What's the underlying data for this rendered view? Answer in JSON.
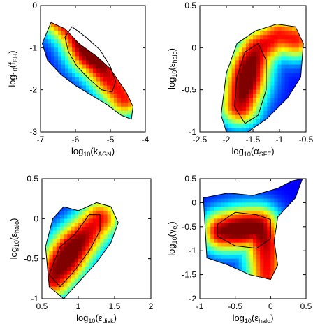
{
  "chart_data": [
    {
      "type": "heatmap",
      "xlabel": "log10(kAGN)",
      "xlabel_parts": {
        "pre": "log",
        "base": "10",
        "mid": "(k",
        "sub": "AGN",
        "post": ")"
      },
      "ylabel": "log10(fBH)",
      "ylabel_parts": {
        "pre": "log",
        "base": "10",
        "mid": "(f",
        "sub": "BH",
        "post": ")"
      },
      "xlim": [
        -7,
        -4
      ],
      "ylim": [
        -3,
        0
      ],
      "xticks": [
        "-7",
        "-6",
        "-5",
        "-4"
      ],
      "yticks": [
        "-3",
        "-2",
        "-1",
        "0"
      ],
      "xtick_values": [
        -7,
        -6,
        -5,
        -4
      ],
      "ytick_values": [
        -3,
        -2,
        -1,
        0
      ],
      "colormap": "jet",
      "peak": {
        "x": -5.6,
        "y": -1.1
      },
      "ridge": [
        [
          -6.6,
          -0.2
        ],
        [
          -6.0,
          -0.6
        ],
        [
          -5.6,
          -1.1
        ],
        [
          -5.3,
          -1.35
        ],
        [
          -5.0,
          -1.75
        ],
        [
          -4.6,
          -2.2
        ]
      ],
      "contour_levels": [
        [
          [
            -6.7,
            -0.4
          ],
          [
            -6.3,
            -0.55
          ],
          [
            -5.9,
            -0.9
          ],
          [
            -5.4,
            -1.2
          ],
          [
            -5.0,
            -1.5
          ],
          [
            -4.8,
            -1.75
          ],
          [
            -4.55,
            -2.05
          ],
          [
            -4.35,
            -2.4
          ],
          [
            -4.4,
            -2.7
          ],
          [
            -4.7,
            -2.6
          ],
          [
            -5.1,
            -2.35
          ],
          [
            -5.5,
            -2.15
          ],
          [
            -6.0,
            -1.9
          ],
          [
            -6.4,
            -1.65
          ],
          [
            -6.8,
            -1.3
          ],
          [
            -6.95,
            -0.9
          ]
        ],
        [
          [
            -6.1,
            -0.5
          ],
          [
            -5.7,
            -0.75
          ],
          [
            -5.3,
            -1.05
          ],
          [
            -5.0,
            -1.45
          ],
          [
            -4.85,
            -1.8
          ],
          [
            -4.95,
            -2.05
          ],
          [
            -5.25,
            -2.0
          ],
          [
            -5.6,
            -1.75
          ],
          [
            -5.95,
            -1.45
          ],
          [
            -6.2,
            -1.1
          ],
          [
            -6.3,
            -0.75
          ]
        ]
      ]
    },
    {
      "type": "heatmap",
      "xlabel": "log10(αSFE)",
      "xlabel_parts": {
        "pre": "log",
        "base": "10",
        "mid": "(α",
        "sub": "SFE",
        "post": ")"
      },
      "ylabel": "log10(εhalo)",
      "ylabel_parts": {
        "pre": "log",
        "base": "10",
        "mid": "(ε",
        "sub": "halo",
        "post": ")"
      },
      "xlim": [
        -2.5,
        -0.5
      ],
      "ylim": [
        -1,
        0.5
      ],
      "xticks": [
        "-2.5",
        "-2",
        "-1.5",
        "-1",
        "-0.5"
      ],
      "yticks": [
        "-1",
        "-0.5",
        "0",
        "0.5"
      ],
      "xtick_values": [
        -2.5,
        -2,
        -1.5,
        -1,
        -0.5
      ],
      "ytick_values": [
        -1,
        -0.5,
        0,
        0.5
      ],
      "colormap": "jet",
      "peak": {
        "x": -1.6,
        "y": -0.35
      },
      "ridge": [
        [
          -1.75,
          -0.7
        ],
        [
          -1.65,
          -0.45
        ],
        [
          -1.55,
          -0.2
        ],
        [
          -1.4,
          0.0
        ],
        [
          -1.0,
          0.15
        ],
        [
          -0.7,
          0.1
        ]
      ],
      "contour_levels": [
        [
          [
            -2.1,
            -0.8
          ],
          [
            -2.0,
            -0.3
          ],
          [
            -1.8,
            0.05
          ],
          [
            -1.45,
            0.2
          ],
          [
            -1.05,
            0.28
          ],
          [
            -0.7,
            0.25
          ],
          [
            -0.55,
            0.05
          ],
          [
            -0.6,
            -0.35
          ],
          [
            -0.85,
            -0.6
          ],
          [
            -1.25,
            -0.85
          ],
          [
            -1.6,
            -1.0
          ],
          [
            -2.0,
            -1.0
          ]
        ],
        [
          [
            -1.85,
            -0.7
          ],
          [
            -1.8,
            -0.35
          ],
          [
            -1.65,
            -0.05
          ],
          [
            -1.4,
            0.05
          ],
          [
            -1.25,
            -0.15
          ],
          [
            -1.25,
            -0.5
          ],
          [
            -1.4,
            -0.8
          ],
          [
            -1.65,
            -0.9
          ]
        ]
      ]
    },
    {
      "type": "heatmap",
      "xlabel": "log10(εdisk)",
      "xlabel_parts": {
        "pre": "log",
        "base": "10",
        "mid": "(ε",
        "sub": "disk",
        "post": ")"
      },
      "ylabel": "log10(εhalo)",
      "ylabel_parts": {
        "pre": "log",
        "base": "10",
        "mid": "(ε",
        "sub": "halo",
        "post": ")"
      },
      "xlim": [
        0.5,
        2
      ],
      "ylim": [
        -1,
        0.5
      ],
      "xticks": [
        "0.5",
        "1",
        "1.5",
        "2"
      ],
      "yticks": [
        "-1",
        "-0.5",
        "0",
        "0.5"
      ],
      "xtick_values": [
        0.5,
        1,
        1.5,
        2
      ],
      "ytick_values": [
        -1,
        -0.5,
        0,
        0.5
      ],
      "colormap": "jet",
      "peak": {
        "x": 0.85,
        "y": -0.45
      },
      "ridge": [
        [
          0.65,
          -0.75
        ],
        [
          0.8,
          -0.55
        ],
        [
          0.95,
          -0.35
        ],
        [
          1.1,
          -0.2
        ],
        [
          1.3,
          0.0
        ]
      ],
      "contour_levels": [
        [
          [
            0.55,
            -0.35
          ],
          [
            0.65,
            0.0
          ],
          [
            0.8,
            0.15
          ],
          [
            1.0,
            0.1
          ],
          [
            1.25,
            0.2
          ],
          [
            1.45,
            0.15
          ],
          [
            1.55,
            -0.05
          ],
          [
            1.45,
            -0.3
          ],
          [
            1.25,
            -0.55
          ],
          [
            1.0,
            -0.8
          ],
          [
            0.8,
            -1.0
          ],
          [
            0.6,
            -0.85
          ]
        ],
        [
          [
            0.6,
            -0.7
          ],
          [
            0.75,
            -0.35
          ],
          [
            0.95,
            -0.2
          ],
          [
            1.15,
            0.05
          ],
          [
            1.3,
            0.05
          ],
          [
            1.3,
            -0.15
          ],
          [
            1.15,
            -0.4
          ],
          [
            0.95,
            -0.65
          ],
          [
            0.75,
            -0.85
          ]
        ]
      ]
    },
    {
      "type": "heatmap",
      "xlabel": "log10(εhalo)",
      "xlabel_parts": {
        "pre": "log",
        "base": "10",
        "mid": "(ε",
        "sub": "halo",
        "post": ")"
      },
      "ylabel": "log10(γej)",
      "ylabel_parts": {
        "pre": "log",
        "base": "10",
        "mid": "(γ",
        "sub": "ej",
        "post": ")"
      },
      "xlim": [
        -1,
        0.5
      ],
      "ylim": [
        -2,
        0.5
      ],
      "xticks": [
        "-1",
        "-0.5",
        "0",
        "0.5"
      ],
      "yticks": [
        "-2",
        "-1.5",
        "-1",
        "-0.5",
        "0",
        "0.5"
      ],
      "xtick_values": [
        -1,
        -0.5,
        0,
        0.5
      ],
      "ytick_values": [
        -2,
        -1.5,
        -1,
        -0.5,
        0,
        0.5
      ],
      "colormap": "jet",
      "peak": {
        "x": -0.4,
        "y": -0.55
      },
      "ridge": [
        [
          -0.7,
          -0.6
        ],
        [
          -0.4,
          -0.55
        ],
        [
          -0.15,
          -0.5
        ],
        [
          -0.05,
          -0.9
        ],
        [
          -0.05,
          -1.5
        ]
      ],
      "contour_levels": [
        [
          [
            -0.95,
            0.1
          ],
          [
            -0.6,
            0.2
          ],
          [
            -0.25,
            0.15
          ],
          [
            0.1,
            0.3
          ],
          [
            0.3,
            0.45
          ],
          [
            0.45,
            0.5
          ],
          [
            0.35,
            0.1
          ],
          [
            0.1,
            -0.3
          ],
          [
            0.05,
            -0.8
          ],
          [
            0.1,
            -1.3
          ],
          [
            0.0,
            -1.6
          ],
          [
            -0.3,
            -1.5
          ],
          [
            -0.6,
            -1.3
          ],
          [
            -0.9,
            -1.15
          ]
        ],
        [
          [
            -0.75,
            -0.45
          ],
          [
            -0.5,
            -0.2
          ],
          [
            -0.2,
            -0.25
          ],
          [
            0.0,
            -0.35
          ],
          [
            0.0,
            -0.75
          ],
          [
            -0.2,
            -0.95
          ],
          [
            -0.5,
            -0.9
          ],
          [
            -0.75,
            -0.7
          ]
        ]
      ]
    }
  ]
}
